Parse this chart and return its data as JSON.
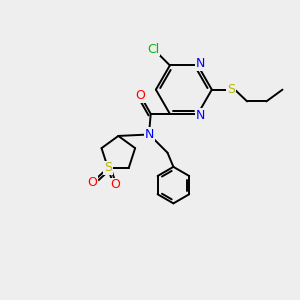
{
  "bg_color": "#eeeeee",
  "atom_colors": {
    "C": "#000000",
    "N": "#0000ff",
    "O": "#ff0000",
    "S": "#b8b800",
    "Cl": "#00bb00"
  },
  "lw": 1.4,
  "fs": 8.5
}
